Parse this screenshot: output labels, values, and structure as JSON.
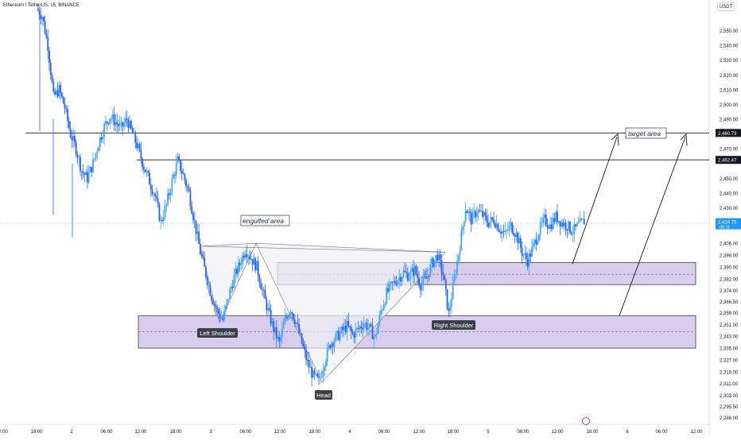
{
  "header": {
    "symbol": "Ethereum / TetherUS, 15, BINANCE",
    "currency_button": "USDT"
  },
  "colors": {
    "candle": "#2962ff",
    "candle_up": "#42a5f5",
    "zone_fill": "#d1c4e9",
    "zone_stroke": "#3d3d3d",
    "line": "#131722",
    "triangle_fill": "#eef1f4",
    "price_label_current": "#2196f3",
    "label_bg": "#3b3f46"
  },
  "chart_data": {
    "type": "candlestick",
    "title": "Ethereum / TetherUS, 15, BINANCE",
    "currency": "USDT",
    "ylim": [
      2285,
      2560
    ],
    "y_ticks": [
      "2,550.00",
      "2,540.00",
      "2,530.00",
      "2,520.00",
      "2,510.00",
      "2,500.00",
      "2,490.00",
      "2,480.73",
      "2,470.00",
      "2,462.47",
      "2,450.00",
      "2,440.00",
      "2,430.00",
      "2,419.75",
      "2,406.00",
      "2,398.00",
      "2,390.00",
      "2,382.00",
      "2,374.00",
      "2,366.50",
      "2,359.00",
      "2,351.00",
      "2,343.00",
      "2,335.00",
      "2,327.00",
      "2,319.00",
      "2,311.00",
      "2,303.00",
      "2,295.50",
      "2,288.00"
    ],
    "x_ticks": [
      "2:00",
      "18:00",
      "2",
      "06:00",
      "12:00",
      "18:00",
      "3",
      "06:00",
      "12:00",
      "18:00",
      "4",
      "06:00",
      "12:00",
      "18:00",
      "5",
      "06:00",
      "12:00",
      "18:00",
      "6",
      "06:00",
      "12:00"
    ],
    "current_price": "2,419.75",
    "countdown": "06:11",
    "horizontal_levels": [
      "2,480.73",
      "2,462.47"
    ],
    "close_path": [
      [
        0,
        2565
      ],
      [
        2,
        2560
      ],
      [
        4,
        2540
      ],
      [
        6,
        2505
      ],
      [
        8,
        2510
      ],
      [
        10,
        2498
      ],
      [
        12,
        2480
      ],
      [
        14,
        2470
      ],
      [
        16,
        2455
      ],
      [
        18,
        2450
      ],
      [
        20,
        2460
      ],
      [
        22,
        2474
      ],
      [
        24,
        2485
      ],
      [
        26,
        2492
      ],
      [
        28,
        2488
      ],
      [
        30,
        2484
      ],
      [
        32,
        2490
      ],
      [
        34,
        2480
      ],
      [
        36,
        2470
      ],
      [
        38,
        2458
      ],
      [
        40,
        2448
      ],
      [
        42,
        2438
      ],
      [
        44,
        2420
      ],
      [
        46,
        2432
      ],
      [
        48,
        2448
      ],
      [
        50,
        2462
      ],
      [
        52,
        2452
      ],
      [
        54,
        2440
      ],
      [
        56,
        2420
      ],
      [
        58,
        2400
      ],
      [
        60,
        2385
      ],
      [
        62,
        2370
      ],
      [
        64,
        2360
      ],
      [
        66,
        2354
      ],
      [
        68,
        2370
      ],
      [
        70,
        2383
      ],
      [
        72,
        2392
      ],
      [
        74,
        2402
      ],
      [
        76,
        2396
      ],
      [
        78,
        2390
      ],
      [
        80,
        2374
      ],
      [
        82,
        2360
      ],
      [
        84,
        2348
      ],
      [
        86,
        2338
      ],
      [
        88,
        2354
      ],
      [
        90,
        2362
      ],
      [
        92,
        2352
      ],
      [
        94,
        2338
      ],
      [
        96,
        2325
      ],
      [
        98,
        2316
      ],
      [
        100,
        2312
      ],
      [
        102,
        2326
      ],
      [
        104,
        2338
      ],
      [
        106,
        2342
      ],
      [
        108,
        2346
      ],
      [
        110,
        2350
      ],
      [
        112,
        2344
      ],
      [
        114,
        2348
      ],
      [
        116,
        2352
      ],
      [
        118,
        2348
      ],
      [
        120,
        2342
      ],
      [
        122,
        2360
      ],
      [
        124,
        2372
      ],
      [
        126,
        2378
      ],
      [
        128,
        2382
      ],
      [
        130,
        2386
      ],
      [
        132,
        2384
      ],
      [
        134,
        2388
      ],
      [
        136,
        2378
      ],
      [
        138,
        2382
      ],
      [
        140,
        2392
      ],
      [
        142,
        2398
      ],
      [
        144,
        2385
      ],
      [
        146,
        2358
      ],
      [
        148,
        2382
      ],
      [
        150,
        2405
      ],
      [
        152,
        2430
      ],
      [
        154,
        2422
      ],
      [
        156,
        2428
      ],
      [
        158,
        2425
      ],
      [
        160,
        2420
      ],
      [
        162,
        2422
      ],
      [
        164,
        2416
      ],
      [
        166,
        2412
      ],
      [
        168,
        2418
      ],
      [
        170,
        2412
      ],
      [
        172,
        2400
      ],
      [
        174,
        2394
      ],
      [
        176,
        2404
      ],
      [
        178,
        2414
      ],
      [
        180,
        2422
      ],
      [
        182,
        2418
      ],
      [
        184,
        2424
      ],
      [
        186,
        2420
      ],
      [
        188,
        2418
      ],
      [
        190,
        2414
      ],
      [
        192,
        2418
      ],
      [
        194,
        2421
      ]
    ],
    "annotations": {
      "engulfed_area_label": "engulfed area",
      "target_area_label": "target area",
      "left_shoulder_label": "Left Shoulder",
      "head_label": "Head",
      "right_shoulder_label": "Right Shoulder"
    },
    "zones": [
      {
        "name": "upper-zone",
        "top": 2393,
        "bottom": 2378,
        "mid": 2385
      },
      {
        "name": "lower-zone",
        "top": 2357,
        "bottom": 2335,
        "mid": 2346
      }
    ]
  }
}
